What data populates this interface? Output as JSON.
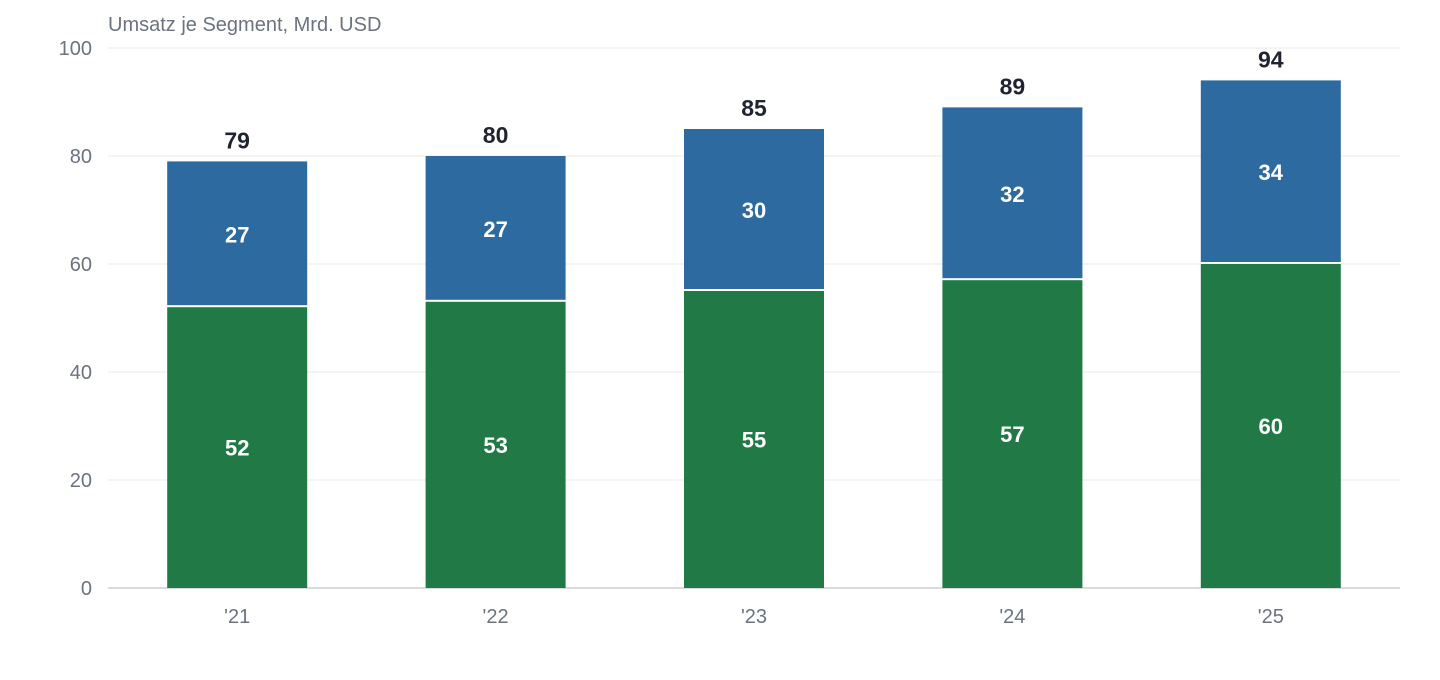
{
  "chart_data": {
    "type": "bar",
    "stacked": true,
    "ylabel": "Umsatz je Segment, Mrd. USD",
    "categories": [
      "'21",
      "'22",
      "'23",
      "'24",
      "'25"
    ],
    "yticks": [
      "0",
      "20",
      "40",
      "60",
      "80",
      "100"
    ],
    "ylim": [
      0,
      100
    ],
    "grid": true,
    "legend": "none",
    "series": [
      {
        "values": [
          52,
          53,
          55,
          57,
          60
        ],
        "color": "#217a46"
      },
      {
        "values": [
          27,
          27,
          30,
          32,
          34
        ],
        "color": "#2d6a9f"
      }
    ],
    "totals": [
      79,
      80,
      85,
      89,
      94
    ]
  }
}
